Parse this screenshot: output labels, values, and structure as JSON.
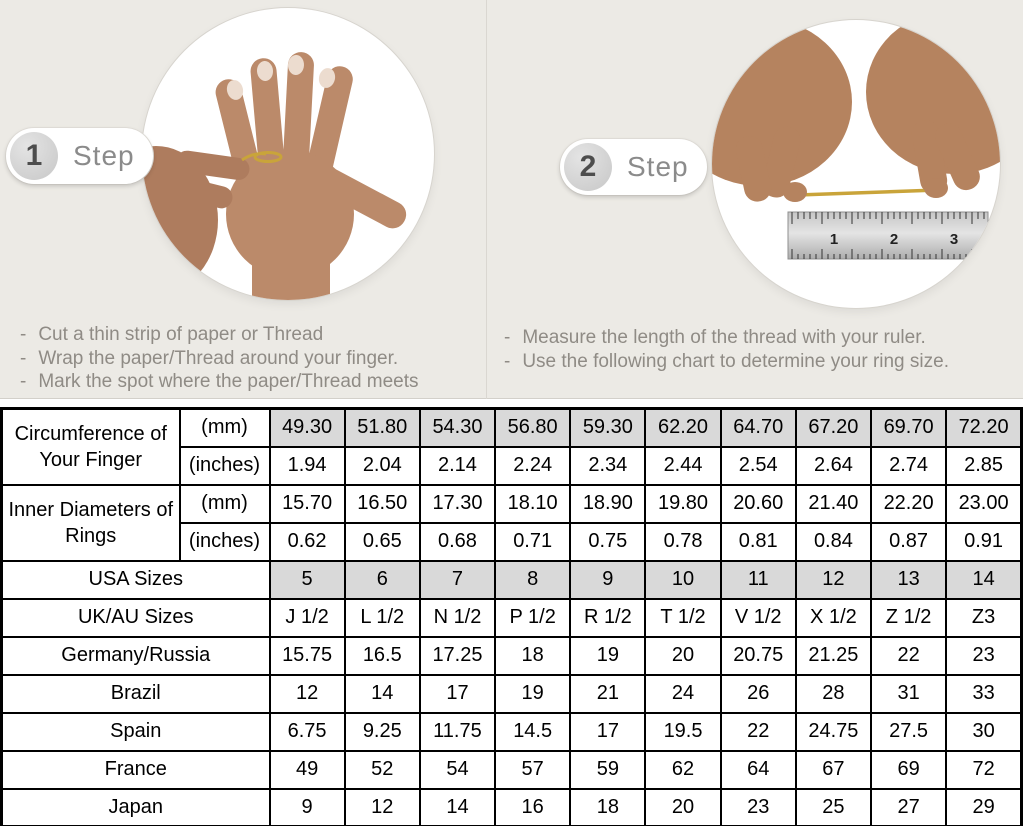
{
  "steps": [
    {
      "number": "1",
      "label": "Step",
      "instructions": [
        "Cut a thin strip of paper or Thread",
        "Wrap the paper/Thread around your finger.",
        "Mark the spot where the paper/Thread meets"
      ]
    },
    {
      "number": "2",
      "label": "Step",
      "instructions": [
        "Measure the length of the thread with your ruler.",
        "Use the following chart to determine your ring size."
      ]
    }
  ],
  "ruler_numbers": [
    "1",
    "2",
    "3"
  ],
  "table": {
    "groups": [
      {
        "label": "Circumference of Your Finger",
        "rows": [
          {
            "unit": "(mm)",
            "highlight": true,
            "values": [
              "49.30",
              "51.80",
              "54.30",
              "56.80",
              "59.30",
              "62.20",
              "64.70",
              "67.20",
              "69.70",
              "72.20"
            ]
          },
          {
            "unit": "(inches)",
            "highlight": false,
            "values": [
              "1.94",
              "2.04",
              "2.14",
              "2.24",
              "2.34",
              "2.44",
              "2.54",
              "2.64",
              "2.74",
              "2.85"
            ]
          }
        ]
      },
      {
        "label": "Inner Diameters of Rings",
        "rows": [
          {
            "unit": "(mm)",
            "highlight": false,
            "values": [
              "15.70",
              "16.50",
              "17.30",
              "18.10",
              "18.90",
              "19.80",
              "20.60",
              "21.40",
              "22.20",
              "23.00"
            ]
          },
          {
            "unit": "(inches)",
            "highlight": false,
            "values": [
              "0.62",
              "0.65",
              "0.68",
              "0.71",
              "0.75",
              "0.78",
              "0.81",
              "0.84",
              "0.87",
              "0.91"
            ]
          }
        ]
      }
    ],
    "size_rows": [
      {
        "label": "USA Sizes",
        "highlight": true,
        "values": [
          "5",
          "6",
          "7",
          "8",
          "9",
          "10",
          "11",
          "12",
          "13",
          "14"
        ]
      },
      {
        "label": "UK/AU Sizes",
        "highlight": false,
        "values": [
          "J 1/2",
          "L 1/2",
          "N 1/2",
          "P 1/2",
          "R 1/2",
          "T 1/2",
          "V 1/2",
          "X 1/2",
          "Z 1/2",
          "Z3"
        ]
      },
      {
        "label": "Germany/Russia",
        "highlight": false,
        "values": [
          "15.75",
          "16.5",
          "17.25",
          "18",
          "19",
          "20",
          "20.75",
          "21.25",
          "22",
          "23"
        ]
      },
      {
        "label": "Brazil",
        "highlight": false,
        "values": [
          "12",
          "14",
          "17",
          "19",
          "21",
          "24",
          "26",
          "28",
          "31",
          "33"
        ]
      },
      {
        "label": "Spain",
        "highlight": false,
        "values": [
          "6.75",
          "9.25",
          "11.75",
          "14.5",
          "17",
          "19.5",
          "22",
          "24.75",
          "27.5",
          "30"
        ]
      },
      {
        "label": "France",
        "highlight": false,
        "values": [
          "49",
          "52",
          "54",
          "57",
          "59",
          "62",
          "64",
          "67",
          "69",
          "72"
        ]
      },
      {
        "label": "Japan",
        "highlight": false,
        "values": [
          "9",
          "12",
          "14",
          "16",
          "18",
          "20",
          "23",
          "25",
          "27",
          "29"
        ]
      }
    ]
  },
  "colors": {
    "background_top": "#eceae5",
    "highlight_cell": "#d9d9d9",
    "table_border": "#000000",
    "muted_text": "#8f8b85",
    "thread_gold": "#c9a43a"
  }
}
